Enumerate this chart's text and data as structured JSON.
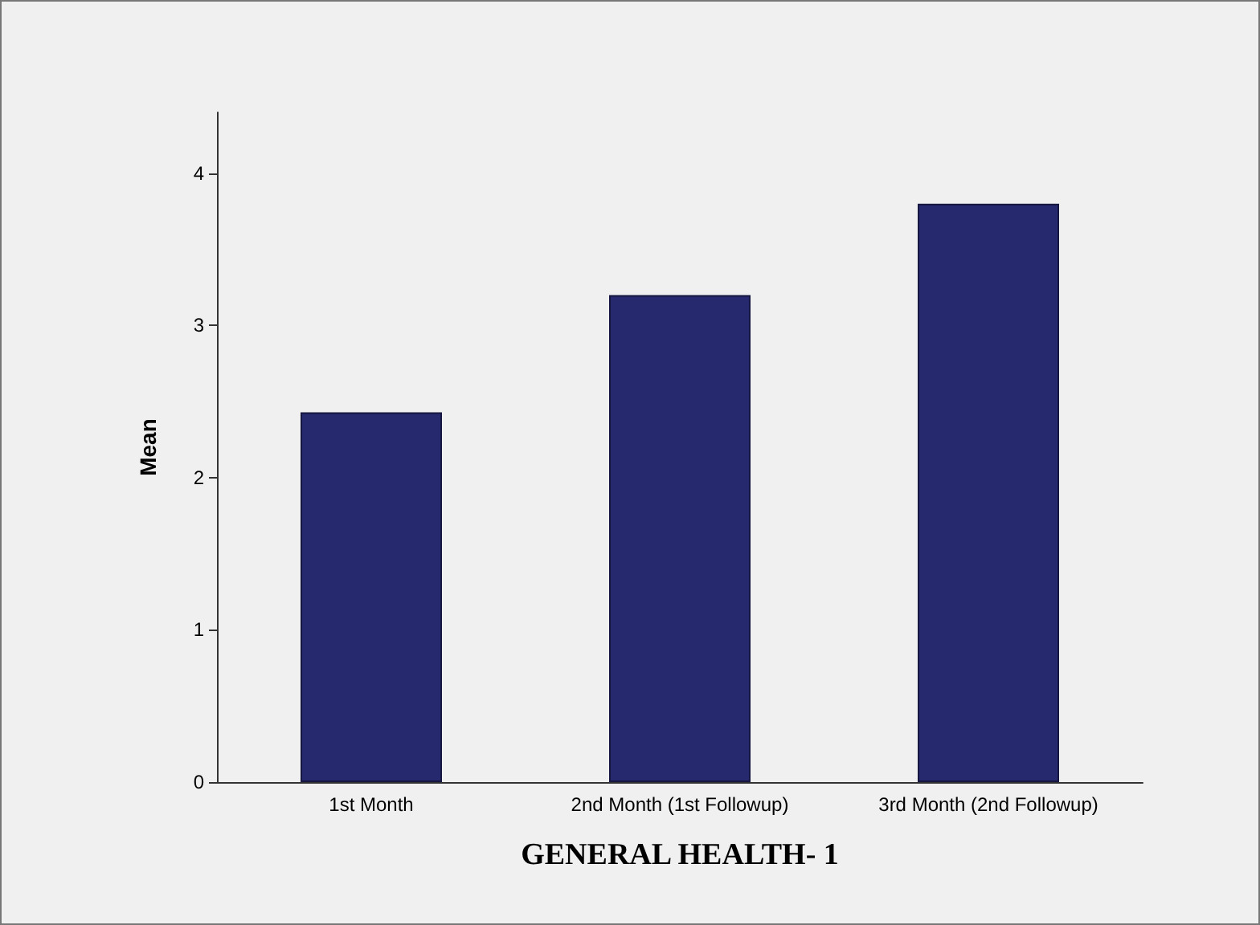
{
  "chart_data": {
    "type": "bar",
    "xlabel": "GENERAL HEALTH- 1",
    "ylabel": "Mean",
    "categories": [
      "1st Month",
      "2nd Month (1st Followup)",
      "3rd Month (2nd Followup)"
    ],
    "values": [
      2.43,
      3.2,
      3.8
    ],
    "color": "#27296f",
    "ylim": [
      0,
      4.4
    ],
    "yticks": [
      0,
      1,
      2,
      3,
      4
    ],
    "grid": false
  }
}
